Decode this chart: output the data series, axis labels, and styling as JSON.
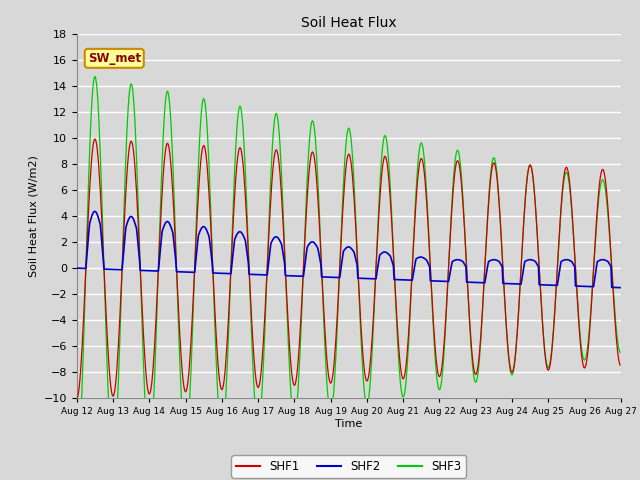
{
  "title": "Soil Heat Flux",
  "ylabel": "Soil Heat Flux (W/m2)",
  "xlabel": "Time",
  "ylim": [
    -10,
    18
  ],
  "yticks": [
    -10,
    -8,
    -6,
    -4,
    -2,
    0,
    2,
    4,
    6,
    8,
    10,
    12,
    14,
    16,
    18
  ],
  "background_color": "#d8d8d8",
  "plot_bg_color": "#d8d8d8",
  "grid_color": "#ffffff",
  "shf1_color": "#cc0000",
  "shf2_color": "#0000cc",
  "shf3_color": "#00cc00",
  "legend_label": "SW_met",
  "legend_bg": "#ffff99",
  "legend_border": "#cc8800",
  "series_names": [
    "SHF1",
    "SHF2",
    "SHF3"
  ],
  "n_days": 15,
  "start_day": 12
}
